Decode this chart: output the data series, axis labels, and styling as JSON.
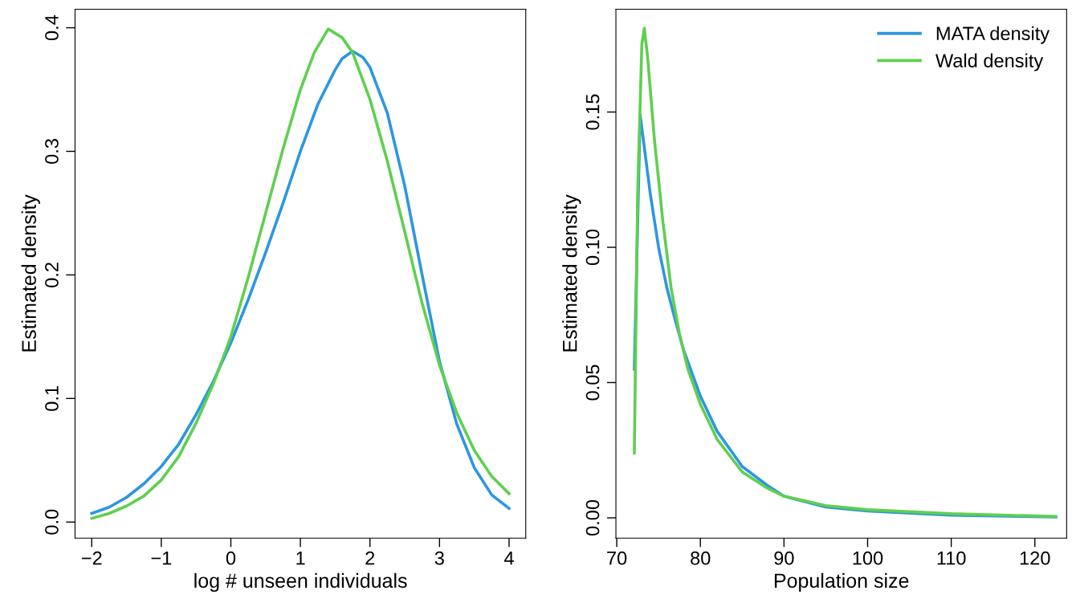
{
  "chart_data": [
    {
      "type": "line",
      "xlabel": "log # unseen individuals",
      "ylabel": "Estimated density",
      "xlim": [
        -2.24,
        4.24
      ],
      "ylim": [
        -0.013,
        0.415
      ],
      "xticks": [
        {
          "value": -2,
          "label": "−2"
        },
        {
          "value": -1,
          "label": "−1"
        },
        0,
        1,
        2,
        3,
        4
      ],
      "yticks": [
        {
          "value": 0,
          "label": "0.0"
        },
        0.1,
        0.2,
        0.3,
        0.4
      ],
      "grid": false,
      "legend": false,
      "series": [
        {
          "color": "#2d96e0",
          "x": [
            -2,
            -1.75,
            -1.5,
            -1.25,
            -1,
            -0.75,
            -0.5,
            -0.25,
            0,
            0.25,
            0.5,
            0.75,
            1,
            1.25,
            1.5,
            1.6,
            1.75,
            1.9,
            2,
            2.25,
            2.5,
            2.75,
            3,
            3.25,
            3.5,
            3.75,
            4
          ],
          "values": [
            0.007,
            0.012,
            0.02,
            0.031,
            0.045,
            0.063,
            0.087,
            0.114,
            0.145,
            0.18,
            0.218,
            0.258,
            0.3,
            0.338,
            0.366,
            0.375,
            0.381,
            0.376,
            0.368,
            0.331,
            0.272,
            0.2,
            0.13,
            0.079,
            0.044,
            0.022,
            0.011
          ]
        },
        {
          "color": "#5fcf50",
          "x": [
            -2,
            -1.75,
            -1.5,
            -1.25,
            -1,
            -0.75,
            -0.5,
            -0.25,
            0,
            0.25,
            0.5,
            0.75,
            1,
            1.2,
            1.4,
            1.6,
            1.75,
            2,
            2.25,
            2.5,
            2.75,
            3,
            3.25,
            3.5,
            3.75,
            4
          ],
          "values": [
            0.003,
            0.007,
            0.013,
            0.021,
            0.034,
            0.053,
            0.08,
            0.112,
            0.15,
            0.198,
            0.25,
            0.302,
            0.35,
            0.38,
            0.399,
            0.392,
            0.38,
            0.342,
            0.292,
            0.235,
            0.177,
            0.127,
            0.088,
            0.058,
            0.037,
            0.023
          ]
        }
      ]
    },
    {
      "type": "line",
      "xlabel": "Population size",
      "ylabel": "Estimated density",
      "xlim": [
        69.9,
        123.8
      ],
      "ylim": [
        -0.0075,
        0.188
      ],
      "xticks": [
        70,
        80,
        90,
        100,
        110,
        120
      ],
      "yticks": [
        {
          "value": 0,
          "label": "0.00"
        },
        {
          "value": 0.05,
          "label": "0.05"
        },
        {
          "value": 0.1,
          "label": "0.10"
        },
        {
          "value": 0.15,
          "label": "0.15"
        }
      ],
      "grid": false,
      "legend": "top right",
      "series": [
        {
          "name": "MATA density",
          "color": "#2d96e0",
          "x": [
            72.1,
            72.8,
            74,
            75,
            76,
            77,
            78,
            80,
            82,
            85,
            88,
            90,
            95,
            100,
            110,
            122.5
          ],
          "values": [
            0.055,
            0.149,
            0.12,
            0.1,
            0.085,
            0.073,
            0.062,
            0.045,
            0.032,
            0.019,
            0.012,
            0.008,
            0.004,
            0.0025,
            0.001,
            0.0003
          ]
        },
        {
          "name": "Wald density",
          "color": "#5fcf50",
          "x": [
            72.1,
            72.5,
            73,
            73.3,
            73.7,
            74.5,
            75.5,
            76.5,
            77.5,
            78.5,
            80,
            82,
            85,
            88,
            90,
            95,
            100,
            110,
            122.5
          ],
          "values": [
            0.024,
            0.12,
            0.175,
            0.181,
            0.17,
            0.14,
            0.11,
            0.085,
            0.068,
            0.055,
            0.042,
            0.029,
            0.017,
            0.011,
            0.008,
            0.0045,
            0.003,
            0.0015,
            0.0005
          ]
        }
      ]
    }
  ]
}
